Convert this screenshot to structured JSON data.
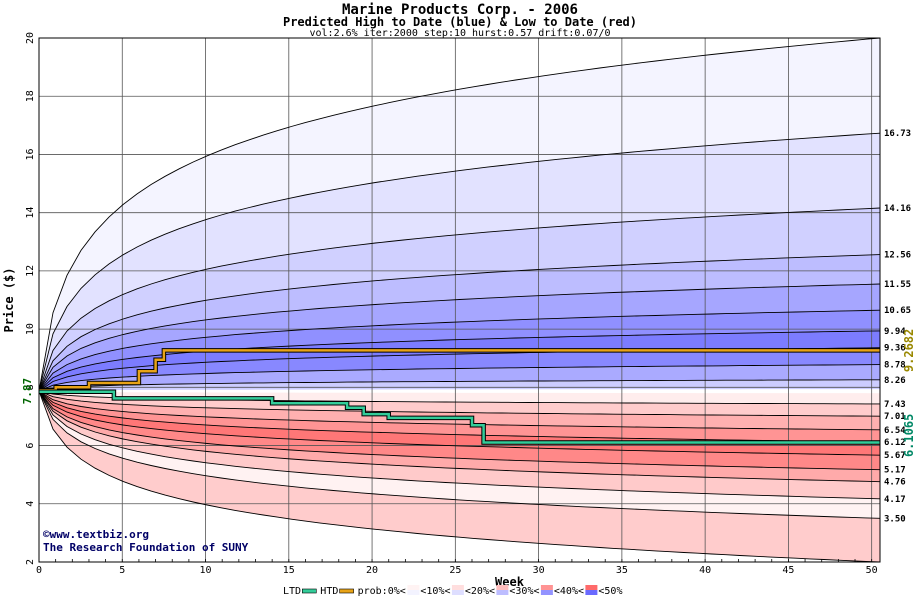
{
  "chart_data": {
    "type": "area",
    "title": "Marine Products Corp. - 2006",
    "subtitle": "Predicted High to Date (blue) &  Low to Date (red)",
    "params": "vol:2.6% iter:2000 step:10 hurst:0.57 drift:0.07/0",
    "xlabel": "Week",
    "ylabel": "Price ($)",
    "xlim": [
      0,
      50.5
    ],
    "ylim": [
      2,
      20
    ],
    "xticks": [
      0,
      5,
      10,
      15,
      20,
      25,
      30,
      35,
      40,
      45,
      50
    ],
    "yticks": [
      2,
      4,
      6,
      8,
      10,
      12,
      14,
      16,
      18,
      20
    ],
    "grid": true,
    "start_price": 7.87,
    "start_label": "7.87",
    "htd_current_label": "9.2682",
    "ltd_current_label": "6.1065",
    "credit_lines": [
      "©www.textbiz.org",
      "The Research Foundation of SUNY"
    ],
    "high_quantiles": [
      {
        "end": 20.0,
        "label": ""
      },
      {
        "end": 16.73,
        "label": "16.73"
      },
      {
        "end": 14.16,
        "label": "14.16"
      },
      {
        "end": 12.56,
        "label": "12.56"
      },
      {
        "end": 11.55,
        "label": "11.55"
      },
      {
        "end": 10.65,
        "label": "10.65"
      },
      {
        "end": 9.94,
        "label": "9.94"
      },
      {
        "end": 9.36,
        "label": "9.36"
      },
      {
        "end": 8.78,
        "label": "8.78"
      },
      {
        "end": 8.26,
        "label": "8.26"
      }
    ],
    "low_quantiles": [
      {
        "end": 7.43,
        "label": "7.43"
      },
      {
        "end": 7.01,
        "label": "7.01"
      },
      {
        "end": 6.54,
        "label": "6.54"
      },
      {
        "end": 6.12,
        "label": "6.12"
      },
      {
        "end": 5.67,
        "label": "5.67"
      },
      {
        "end": 5.17,
        "label": "5.17"
      },
      {
        "end": 4.76,
        "label": "4.76"
      },
      {
        "end": 4.17,
        "label": "4.17"
      },
      {
        "end": 3.5,
        "label": "3.50"
      },
      {
        "end": 2.0,
        "label": ""
      }
    ],
    "htd_series": {
      "name": "HTD",
      "x": [
        0,
        1,
        1,
        3,
        3,
        6,
        6,
        7,
        7,
        7.5,
        7.5,
        50.5
      ],
      "y": [
        7.9,
        7.9,
        8.0,
        8.0,
        8.15,
        8.15,
        8.55,
        8.55,
        8.95,
        8.95,
        9.2682,
        9.2682
      ]
    },
    "ltd_series": {
      "name": "LTD",
      "x": [
        0,
        4.5,
        4.5,
        14,
        14,
        18.5,
        18.5,
        19.5,
        19.5,
        21,
        21,
        26,
        26,
        26.7,
        26.7,
        50.5
      ],
      "y": [
        7.85,
        7.85,
        7.62,
        7.62,
        7.45,
        7.45,
        7.3,
        7.3,
        7.08,
        7.08,
        6.95,
        6.95,
        6.7,
        6.7,
        6.1065,
        6.1065
      ]
    },
    "legend": {
      "placement": "bottom",
      "items": [
        {
          "label": "LTD",
          "color": "#33cc99",
          "kind": "line"
        },
        {
          "label": "HTD",
          "color": "#e8a317",
          "kind": "line"
        },
        {
          "label": "prob:0%<",
          "kind": "text"
        },
        {
          "label": "<10%<",
          "colors": [
            "#fff3f3",
            "#f3f3ff"
          ],
          "kind": "swatch"
        },
        {
          "label": "<20%<",
          "colors": [
            "#ffdede",
            "#dedeff"
          ],
          "kind": "swatch"
        },
        {
          "label": "<30%<",
          "colors": [
            "#ffbdbd",
            "#bdbdff"
          ],
          "kind": "swatch"
        },
        {
          "label": "<40%<",
          "colors": [
            "#ff9393",
            "#9393ff"
          ],
          "kind": "swatch"
        },
        {
          "label": "<50%",
          "colors": [
            "#ff6a6a",
            "#6a6aff"
          ],
          "kind": "swatch"
        }
      ]
    },
    "colors": {
      "high_bands": [
        "#f4f4ff",
        "#e2e2ff",
        "#d0d0ff",
        "#bdbdff",
        "#a6a6ff",
        "#9090ff",
        "#7c7cff",
        "#8888ff",
        "#aaaaff"
      ],
      "low_bands": [
        "#ffeded",
        "#ffcccc",
        "#ffb0b0",
        "#ff9494",
        "#ff7777",
        "#ff8888",
        "#ffaaaa",
        "#ffcaca",
        "#fff2f2"
      ],
      "htd": "#e8a317",
      "ltd": "#33cc99",
      "start_label": "#006600",
      "htd_label": "#998800",
      "ltd_label": "#008866"
    }
  }
}
